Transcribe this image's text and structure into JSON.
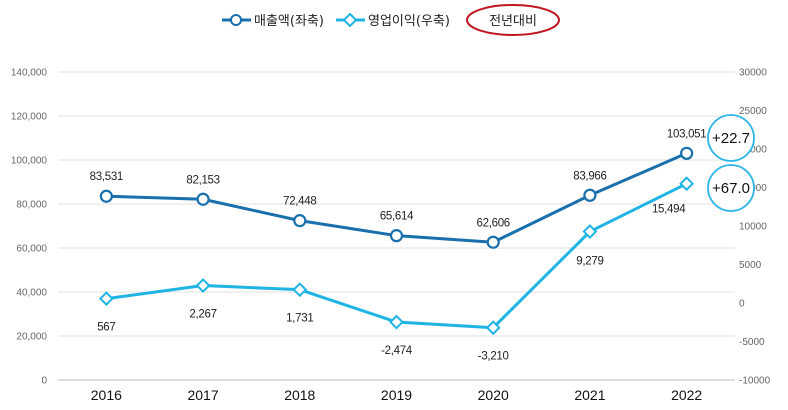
{
  "chart_data": {
    "type": "line",
    "categories": [
      "2016",
      "2017",
      "2018",
      "2019",
      "2020",
      "2021",
      "2022"
    ],
    "series": [
      {
        "name": "매출액(좌축)",
        "axis": "left",
        "color": "#1a6fad",
        "marker": "circle",
        "values": [
          83531,
          82153,
          72448,
          65614,
          62606,
          83966,
          103051
        ],
        "labels": [
          "83,531",
          "82,153",
          "72,448",
          "65,614",
          "62,606",
          "83,966",
          "103,051"
        ]
      },
      {
        "name": "영업이익(우축)",
        "axis": "right",
        "color": "#1fb4e4",
        "marker": "diamond",
        "values": [
          567,
          2267,
          1731,
          -2474,
          -3210,
          9279,
          15494
        ],
        "labels": [
          "567",
          "2,267",
          "1,731",
          "-2,474",
          "-3,210",
          "9,279",
          "15,494"
        ]
      }
    ],
    "y_left": {
      "ylim": [
        0,
        140000
      ],
      "ticks": [
        "0",
        "20,000",
        "40,000",
        "60,000",
        "80,000",
        "100,000",
        "120,000",
        "140,000"
      ]
    },
    "y_right": {
      "ylim": [
        -10000,
        30000
      ],
      "ticks": [
        "-10000",
        "-5000",
        "0",
        "5000",
        "10000",
        "15000",
        "20000",
        "25000",
        "30000"
      ]
    },
    "grid": true,
    "legend": {
      "placement": "top-center",
      "extra_label": "전년대비"
    },
    "annotations": [
      {
        "series": "매출액(좌축)",
        "text": "+22.7"
      },
      {
        "series": "영업이익(우축)",
        "text": "+67.0"
      }
    ]
  }
}
